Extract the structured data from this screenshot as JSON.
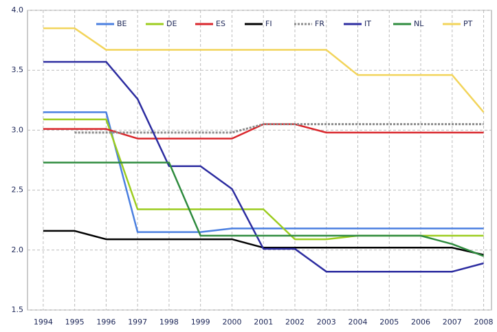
{
  "chart_data": {
    "type": "line",
    "x": [
      1994,
      1995,
      1996,
      1997,
      1998,
      1999,
      2000,
      2001,
      2002,
      2003,
      2004,
      2005,
      2006,
      2007,
      2008
    ],
    "xlim": [
      1993.5,
      2008.25
    ],
    "xticks": [
      1994,
      1995,
      1996,
      1997,
      1998,
      1999,
      2000,
      2001,
      2002,
      2003,
      2004,
      2005,
      2006,
      2007,
      2008
    ],
    "ylim": [
      1.5,
      4.0
    ],
    "yticks": [
      1.5,
      {
        "value": 2.0,
        "label": "2.0"
      },
      2.5,
      {
        "value": 3.0,
        "label": "3.0"
      },
      3.5,
      {
        "value": 4.0,
        "label": "4.0"
      }
    ],
    "grid": true,
    "legend": "top",
    "series": [
      {
        "name": "BE",
        "color": "#4a7fe0",
        "values": [
          3.15,
          3.15,
          3.15,
          2.15,
          2.15,
          2.15,
          2.18,
          2.18,
          2.18,
          2.18,
          2.18,
          2.18,
          2.18,
          2.18,
          2.18
        ]
      },
      {
        "name": "DE",
        "color": "#9ccc1e",
        "values": [
          3.09,
          3.09,
          3.09,
          2.34,
          2.34,
          2.34,
          2.34,
          2.34,
          2.09,
          2.09,
          2.12,
          2.12,
          2.12,
          2.12,
          2.12
        ]
      },
      {
        "name": "ES",
        "color": "#d9262b",
        "values": [
          3.01,
          3.01,
          3.01,
          2.93,
          2.93,
          2.93,
          2.93,
          3.05,
          3.05,
          2.98,
          2.98,
          2.98,
          2.98,
          2.98,
          2.98
        ]
      },
      {
        "name": "FI",
        "color": "#000000",
        "values": [
          2.16,
          2.16,
          2.09,
          2.09,
          2.09,
          2.09,
          2.09,
          2.02,
          2.02,
          2.02,
          2.02,
          2.02,
          2.02,
          2.02,
          1.96
        ]
      },
      {
        "name": "FR",
        "color": "#8a8a8a",
        "style": "dashed",
        "values": [
          null,
          2.98,
          2.98,
          2.98,
          2.98,
          2.98,
          2.98,
          3.05,
          3.05,
          3.05,
          3.05,
          3.05,
          3.05,
          3.05,
          3.05
        ]
      },
      {
        "name": "IT",
        "color": "#2c2ca0",
        "values": [
          3.57,
          3.57,
          3.57,
          3.26,
          2.7,
          2.7,
          2.51,
          2.01,
          2.01,
          1.82,
          1.82,
          1.82,
          1.82,
          1.82,
          1.89
        ]
      },
      {
        "name": "NL",
        "color": "#2e8b3e",
        "values": [
          2.73,
          2.73,
          2.73,
          2.73,
          2.73,
          2.12,
          2.12,
          2.12,
          2.12,
          2.12,
          2.12,
          2.12,
          2.12,
          2.05,
          1.95
        ]
      },
      {
        "name": "PT",
        "color": "#f2d45a",
        "values": [
          3.85,
          3.85,
          3.67,
          3.67,
          3.67,
          3.67,
          3.67,
          3.67,
          3.67,
          3.67,
          3.46,
          3.46,
          3.46,
          3.46,
          3.15
        ]
      }
    ]
  }
}
